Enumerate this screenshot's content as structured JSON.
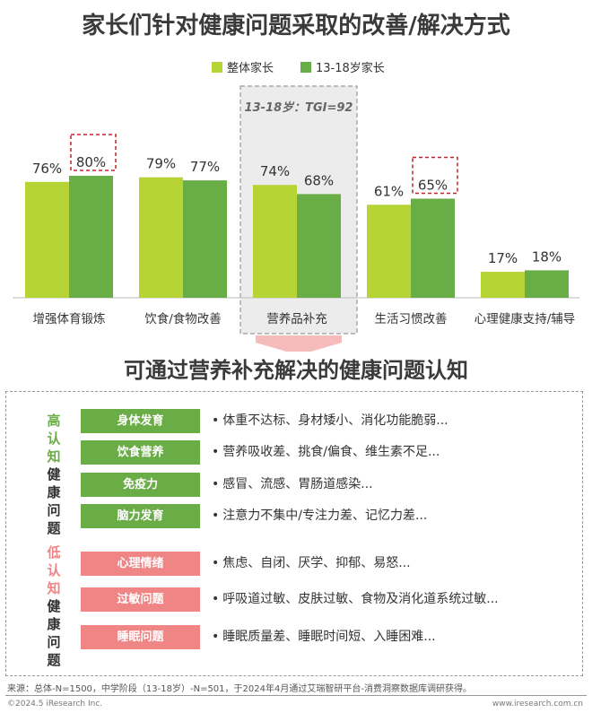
{
  "titles": {
    "top": "家长们针对健康问题采取的改善/解决方式",
    "bottom": "可通过营养补充解决的健康问题认知"
  },
  "chart_data": {
    "type": "bar",
    "categories": [
      "增强体育锻炼",
      "饮食/食物改善",
      "营养品补充",
      "生活习惯改善",
      "心理健康支持/辅导"
    ],
    "series": [
      {
        "name": "整体家长",
        "values": [
          76,
          79,
          74,
          61,
          17
        ],
        "color": "#b6d433"
      },
      {
        "name": "13-18岁家长",
        "values": [
          80,
          77,
          68,
          65,
          18
        ],
        "color": "#68ad45"
      }
    ],
    "value_suffix": "%",
    "ylim": [
      0,
      100
    ],
    "legend_position": "top",
    "highlight_values": [
      {
        "category": 0,
        "series": 1
      },
      {
        "category": 3,
        "series": 1
      }
    ],
    "highlight_category": 2,
    "annotation": "13-18岁：TGI=92"
  },
  "cognition": {
    "high_label": [
      "高",
      "认",
      "知",
      "健",
      "康",
      "问",
      "题"
    ],
    "low_label": [
      "低",
      "认",
      "知",
      "健",
      "康",
      "问",
      "题"
    ],
    "high": [
      {
        "tag": "身体发育",
        "desc": "体重不达标、身材矮小、消化功能脆弱..."
      },
      {
        "tag": "饮食营养",
        "desc": "营养吸收差、挑食/偏食、维生素不足..."
      },
      {
        "tag": "免疫力",
        "desc": "感冒、流感、胃肠道感染..."
      },
      {
        "tag": "脑力发育",
        "desc": "注意力不集中/专注力差、记忆力差..."
      }
    ],
    "low": [
      {
        "tag": "心理情绪",
        "desc": "焦虑、自闭、厌学、抑郁、易怒..."
      },
      {
        "tag": "过敏问题",
        "desc": "呼吸道过敏、皮肤过敏、食物及消化道系统过敏..."
      },
      {
        "tag": "睡眠问题",
        "desc": "睡眠质量差、睡眠时间短、入睡困难..."
      }
    ],
    "bullet": "•"
  },
  "footer": {
    "source": "来源：总体-N=1500，中学阶段（13-18岁）-N=501，于2024年4月通过艾瑞智研平台-消费洞察数据库调研获得。",
    "copyright": "©2024.5 iResearch Inc.",
    "site": "www.iresearch.com.cn"
  },
  "colors": {
    "accent_green": "#6aac45",
    "accent_pink": "#ef8585",
    "high_label_color": "#6aac45",
    "low_label_color": "#ef8585",
    "highlight_border": "#c0272d"
  }
}
